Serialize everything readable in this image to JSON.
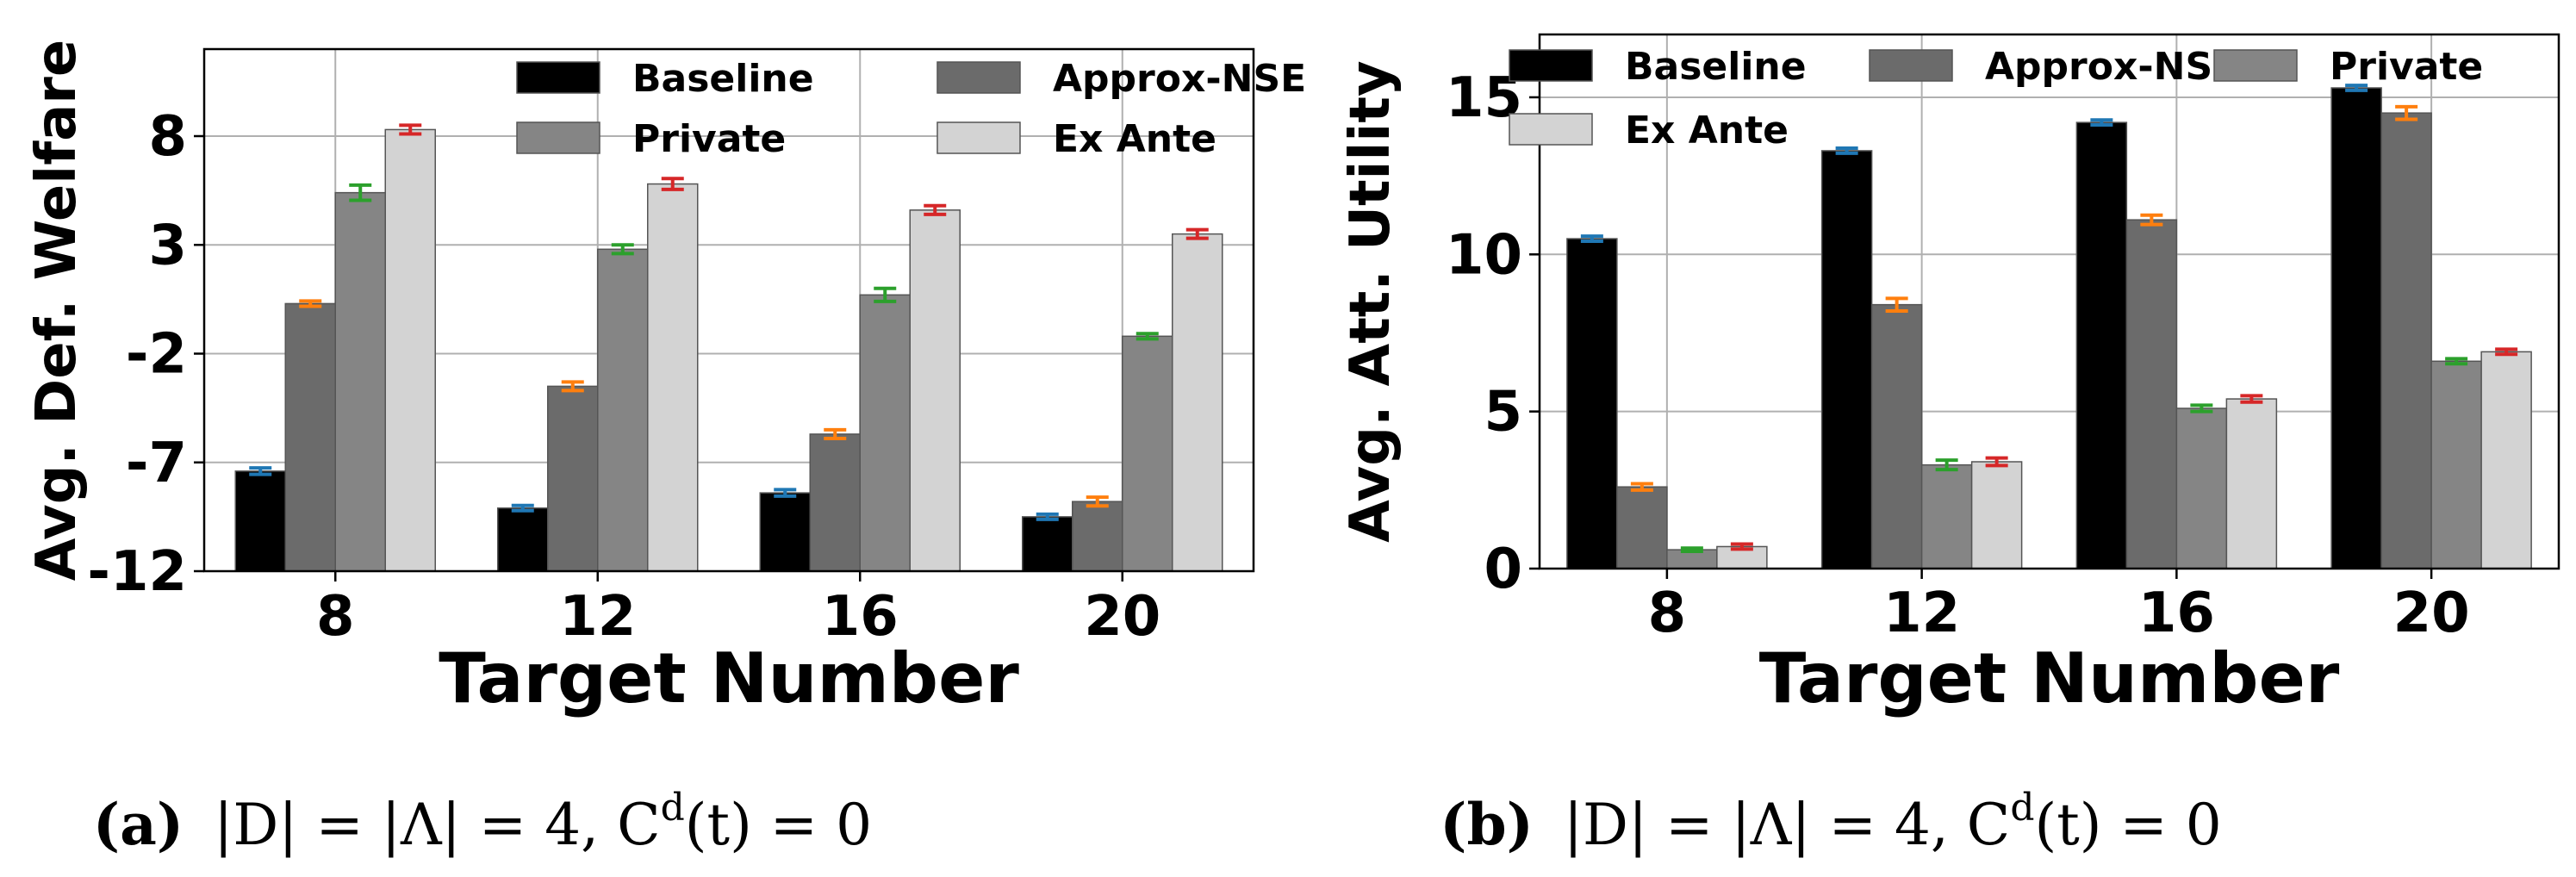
{
  "chart_data": [
    {
      "type": "bar",
      "panel": "a",
      "title": "",
      "xlabel": "Target Number",
      "ylabel": "Avg. Def. Welfare",
      "categories": [
        "8",
        "12",
        "16",
        "20"
      ],
      "ylim": [
        -12,
        12
      ],
      "yticks": [
        -12,
        -7,
        -2,
        3,
        8
      ],
      "ytick_labels": [
        "-12",
        "-7",
        "-2",
        "3",
        "8"
      ],
      "grid": true,
      "legend_position": "top-right",
      "series": [
        {
          "name": "Baseline",
          "values": [
            -7.4,
            -9.1,
            -8.4,
            -9.5
          ],
          "errors": [
            0.15,
            0.12,
            0.15,
            0.12
          ]
        },
        {
          "name": "Approx-NSE",
          "values": [
            0.3,
            -3.5,
            -5.7,
            -8.8
          ],
          "errors": [
            0.12,
            0.2,
            0.2,
            0.2
          ]
        },
        {
          "name": "Private",
          "values": [
            5.4,
            2.8,
            0.7,
            -1.2
          ],
          "errors": [
            0.35,
            0.2,
            0.3,
            0.12
          ]
        },
        {
          "name": "Ex Ante",
          "values": [
            8.3,
            5.8,
            4.6,
            3.5
          ],
          "errors": [
            0.2,
            0.25,
            0.2,
            0.2
          ]
        }
      ],
      "caption": {
        "label": "(a)",
        "formula": "|D| = |Λ| = 4, C",
        "sup": "d",
        "tail": "(t) = 0"
      }
    },
    {
      "type": "bar",
      "panel": "b",
      "title": "",
      "xlabel": "Target Number",
      "ylabel": "Avg. Att. Utility",
      "categories": [
        "8",
        "12",
        "16",
        "20"
      ],
      "ylim": [
        0,
        17
      ],
      "yticks": [
        0,
        5,
        10,
        15
      ],
      "ytick_labels": [
        "0",
        "5",
        "10",
        "15"
      ],
      "grid": true,
      "legend_position": "top",
      "series": [
        {
          "name": "Baseline",
          "values": [
            10.5,
            13.3,
            14.2,
            15.3
          ],
          "errors": [
            0.08,
            0.08,
            0.08,
            0.08
          ]
        },
        {
          "name": "Approx-NSE",
          "values": [
            2.6,
            8.4,
            11.1,
            14.5
          ],
          "errors": [
            0.1,
            0.2,
            0.15,
            0.2
          ]
        },
        {
          "name": "Private",
          "values": [
            0.6,
            3.3,
            5.1,
            6.6
          ],
          "errors": [
            0.05,
            0.15,
            0.1,
            0.08
          ]
        },
        {
          "name": "Ex Ante",
          "values": [
            0.7,
            3.4,
            5.4,
            6.9
          ],
          "errors": [
            0.08,
            0.12,
            0.1,
            0.08
          ]
        }
      ],
      "caption": {
        "label": "(b)",
        "formula": "|D| = |Λ| = 4, C",
        "sup": "d",
        "tail": "(t) = 0"
      }
    }
  ],
  "colors": {
    "Baseline": "#000000",
    "Approx-NSE": "#6b6b6b",
    "Private": "#858585",
    "Ex Ante": "#d3d3d3",
    "err_Baseline": "#1f77b4",
    "err_Approx-NSE": "#ff7f0e",
    "err_Private": "#2ca02c",
    "err_Ex Ante": "#d62728",
    "grid": "#b0b0b0",
    "axis": "#000000"
  }
}
